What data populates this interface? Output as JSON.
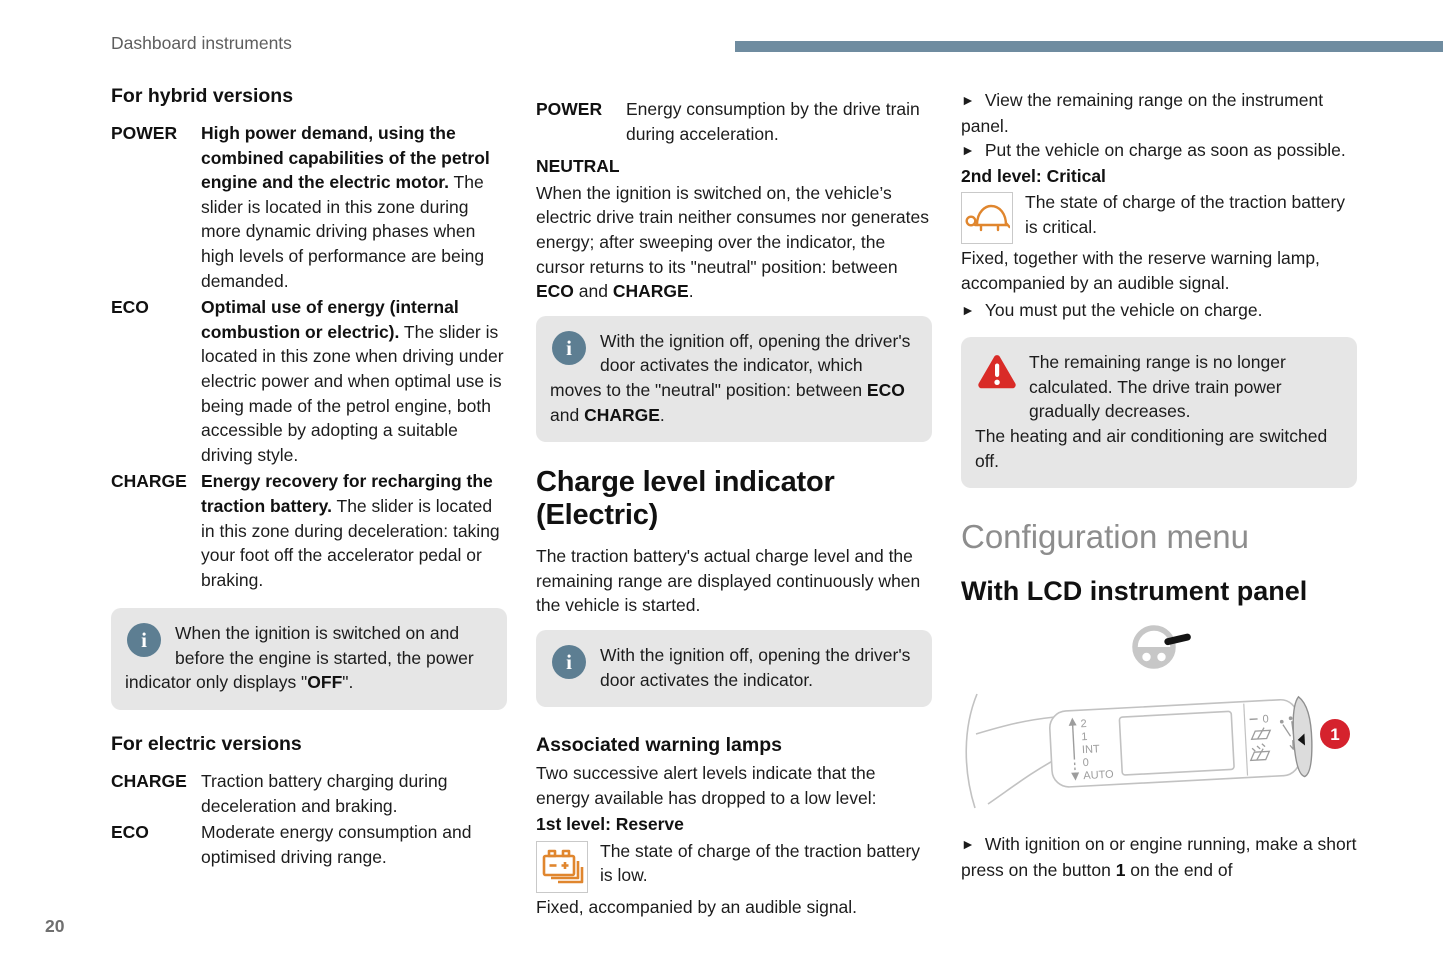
{
  "page": {
    "header_title": "Dashboard instruments",
    "page_number": "20"
  },
  "icons": {
    "info_glyph": "i",
    "bullet_marker": "►"
  },
  "col1": {
    "hybrid_heading": "For hybrid versions",
    "hybrid_items": [
      {
        "term": "POWER",
        "bold": "High power demand, using the combined capabilities of the petrol engine and the electric motor.",
        "text": "The slider is located in this zone during more dynamic driving phases when high levels of performance are being demanded."
      },
      {
        "term": "ECO",
        "bold": "Optimal use of energy (internal combustion or electric).",
        "text": "The slider is located in this zone when driving under electric power and when optimal use is being made of the petrol engine, both accessible by adopting a suitable driving style."
      },
      {
        "term": "CHARGE",
        "bold": "Energy recovery for recharging the traction battery.",
        "text": "The slider is located in this zone during deceleration: taking your foot off the accelerator pedal or braking."
      }
    ],
    "info_note": [
      {
        "t": "When the ignition is switched on and before the engine is started, the power indicator only displays \""
      },
      {
        "t": "OFF",
        "b": true
      },
      {
        "t": "\"."
      }
    ],
    "electric_heading": "For electric versions",
    "electric_items": [
      {
        "term": "CHARGE",
        "text": "Traction battery charging during deceleration and braking."
      },
      {
        "term": "ECO",
        "text": "Moderate energy consumption and optimised driving range."
      }
    ]
  },
  "col2": {
    "power_term": "POWER",
    "power_text": "Energy consumption by the drive train during acceleration.",
    "neutral_heading": "NEUTRAL",
    "neutral_para": [
      {
        "t": "When the ignition is switched on, the vehicle’s electric drive train neither consumes nor generates energy; after sweeping over the indicator, the cursor returns to its \"neutral\" position: between "
      },
      {
        "t": "ECO",
        "b": true
      },
      {
        "t": " and "
      },
      {
        "t": "CHARGE",
        "b": true
      },
      {
        "t": "."
      }
    ],
    "info_note_1": [
      {
        "t": "With the ignition off, opening the driver's door activates the indicator, which moves to the \"neutral\" position: between "
      },
      {
        "t": "ECO",
        "b": true
      },
      {
        "t": " and "
      },
      {
        "t": "CHARGE",
        "b": true
      },
      {
        "t": "."
      }
    ],
    "charge_heading": "Charge level indicator (Electric)",
    "charge_para": "The traction battery's actual charge level and the remaining range are displayed continuously when the vehicle is started.",
    "info_note_2": [
      {
        "t": "With the ignition off, opening the driver's door activates the indicator."
      }
    ],
    "warning_heading": "Associated warning lamps",
    "warning_para": "Two successive alert levels indicate that the energy available has dropped to a low level:",
    "level1_heading": "1st level: Reserve",
    "level1_text": "The state of charge of the traction battery is low.",
    "level1_note": "Fixed, accompanied by an audible signal."
  },
  "col3": {
    "bullet1": "View the remaining range on the instrument panel.",
    "bullet2": "Put the vehicle on charge as soon as possible.",
    "level2_heading": "2nd level: Critical",
    "level2_text": "The state of charge of the traction battery is critical.",
    "level2_note": "Fixed, together with the reserve warning lamp, accompanied by an audible signal.",
    "bullet3": "You must put the vehicle on charge.",
    "warning_note_line1": "The remaining range is no longer calculated. The drive train power gradually decreases.",
    "warning_note_line2": "The heating and air conditioning are switched off.",
    "config_heading": "Configuration menu",
    "lcd_heading": "With LCD instrument panel",
    "stalk_labels": {
      "pos2": "2",
      "pos1": "1",
      "int": "INT",
      "pos0": "0",
      "auto": "AUTO",
      "wiper0": "0",
      "badge": "1"
    },
    "bullet4": [
      {
        "t": "With ignition on or engine running, make a short press on the button "
      },
      {
        "t": "1",
        "b": true
      },
      {
        "t": " on the end of"
      }
    ]
  }
}
